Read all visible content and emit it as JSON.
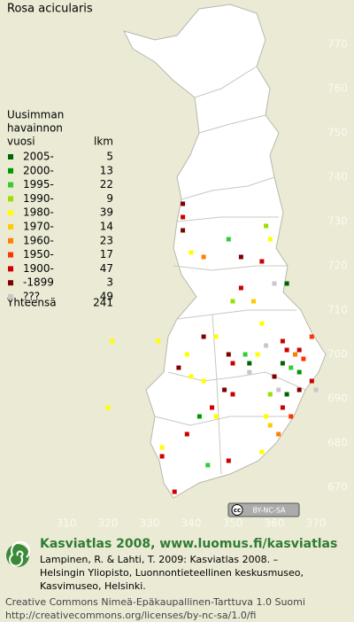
{
  "title": "Rosa acicularis",
  "legend": {
    "heading": [
      "Uusimman",
      "havainnon",
      "vuosi"
    ],
    "count_heading": "lkm",
    "items": [
      {
        "label": "2005-",
        "count": 5,
        "color": "#006400"
      },
      {
        "label": "2000-",
        "count": 13,
        "color": "#009a00"
      },
      {
        "label": "1995-",
        "count": 22,
        "color": "#33cc33"
      },
      {
        "label": "1990-",
        "count": 9,
        "color": "#99e000"
      },
      {
        "label": "1980-",
        "count": 39,
        "color": "#ffff00"
      },
      {
        "label": "1970-",
        "count": 14,
        "color": "#ffcc00"
      },
      {
        "label": "1960-",
        "count": 23,
        "color": "#ff8000"
      },
      {
        "label": "1950-",
        "count": 17,
        "color": "#ff3300"
      },
      {
        "label": "1900-",
        "count": 47,
        "color": "#cc0000"
      },
      {
        "label": "-1899",
        "count": 3,
        "color": "#800000"
      },
      {
        "label": "???",
        "count": 49,
        "color": "#c8c8c8"
      }
    ],
    "total_label": "Yhteensä",
    "total": 241
  },
  "map": {
    "xticks": [
      310,
      320,
      330,
      340,
      350,
      360,
      370
    ],
    "yticks": [
      770,
      760,
      750,
      740,
      730,
      720,
      710,
      700,
      690,
      680,
      670
    ],
    "cells": [
      [
        338,
        734,
        9
      ],
      [
        338,
        731,
        8
      ],
      [
        338,
        728,
        9
      ],
      [
        349,
        726,
        2
      ],
      [
        358,
        729,
        3
      ],
      [
        359,
        726,
        4
      ],
      [
        340,
        723,
        4
      ],
      [
        343,
        722,
        6
      ],
      [
        352,
        722,
        9
      ],
      [
        357,
        721,
        8
      ],
      [
        363,
        716,
        0
      ],
      [
        352,
        715,
        8
      ],
      [
        350,
        712,
        3
      ],
      [
        360,
        716,
        10
      ],
      [
        355,
        712,
        5
      ],
      [
        346,
        704,
        4
      ],
      [
        357,
        707,
        4
      ],
      [
        362,
        703,
        8
      ],
      [
        363,
        701,
        8
      ],
      [
        365,
        700,
        6
      ],
      [
        367,
        699,
        7
      ],
      [
        366,
        696,
        1
      ],
      [
        364,
        697,
        2
      ],
      [
        362,
        698,
        0
      ],
      [
        360,
        695,
        9
      ],
      [
        349,
        700,
        9
      ],
      [
        350,
        698,
        8
      ],
      [
        353,
        700,
        2
      ],
      [
        354,
        698,
        0
      ],
      [
        356,
        700,
        4
      ],
      [
        358,
        702,
        10
      ],
      [
        343,
        704,
        9
      ],
      [
        339,
        700,
        4
      ],
      [
        337,
        697,
        9
      ],
      [
        340,
        695,
        4
      ],
      [
        343,
        694,
        4
      ],
      [
        348,
        692,
        9
      ],
      [
        350,
        691,
        8
      ],
      [
        345,
        688,
        8
      ],
      [
        346,
        686,
        4
      ],
      [
        342,
        686,
        1
      ],
      [
        339,
        682,
        8
      ],
      [
        333,
        679,
        4
      ],
      [
        333,
        677,
        8
      ],
      [
        344,
        675,
        2
      ],
      [
        349,
        676,
        8
      ],
      [
        357,
        678,
        4
      ],
      [
        359,
        684,
        5
      ],
      [
        362,
        688,
        8
      ],
      [
        364,
        686,
        7
      ],
      [
        361,
        682,
        6
      ],
      [
        336,
        669,
        8
      ],
      [
        321,
        703,
        4
      ],
      [
        320,
        688,
        4
      ],
      [
        332,
        703,
        4
      ],
      [
        369,
        694,
        8
      ],
      [
        366,
        692,
        9
      ],
      [
        370,
        692,
        10
      ],
      [
        363,
        691,
        0
      ],
      [
        358,
        686,
        4
      ],
      [
        369,
        704,
        7
      ],
      [
        366,
        701,
        8
      ],
      [
        361,
        692,
        10
      ],
      [
        359,
        691,
        3
      ],
      [
        354,
        696,
        10
      ]
    ]
  },
  "badge": "BY-NC-SA",
  "footer": {
    "heading": "Kasviatlas 2008, www.luomus.fi/kasviatlas",
    "citation": [
      "Lampinen, R. & Lahti, T. 2009: Kasviatlas 2008. –",
      "Helsingin Yliopisto, Luonnontieteellinen keskusmuseo,",
      "Kasvimuseo, Helsinki."
    ],
    "license": [
      "Creative Commons Nimeä-Epäkaupallinen-Tarttuva 1.0 Suomi",
      "http://creativecommons.org/licenses/by-nc-sa/1.0/fi"
    ]
  }
}
